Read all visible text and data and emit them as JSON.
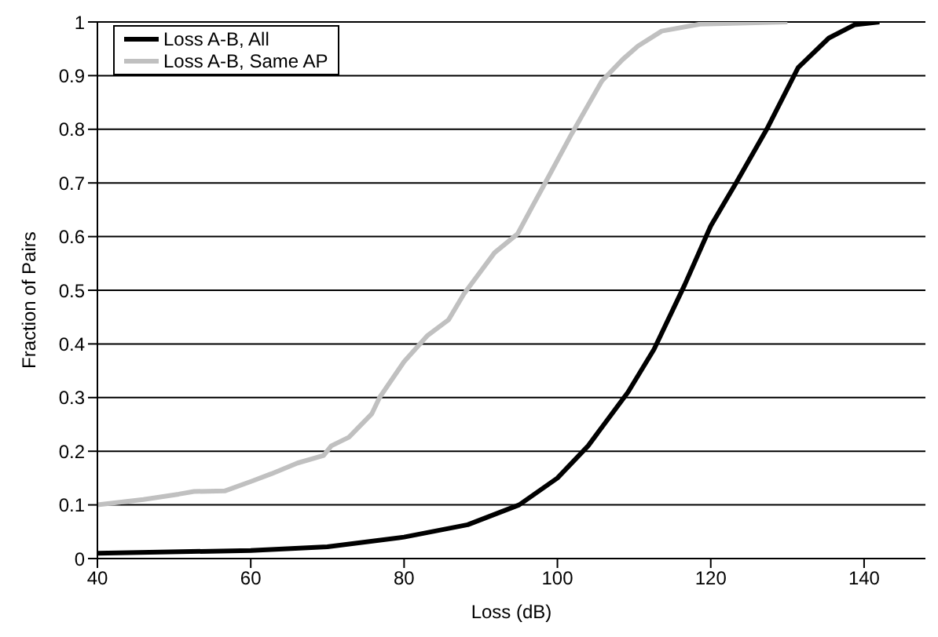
{
  "chart_data": {
    "type": "line",
    "xlabel": "Loss (dB)",
    "ylabel": "Fraction of Pairs",
    "xlim": [
      40,
      148
    ],
    "xticks": [
      40,
      60,
      80,
      100,
      120,
      140
    ],
    "ylim": [
      0,
      1
    ],
    "yticks": [
      0,
      0.1,
      0.2,
      0.3,
      0.4,
      0.5,
      0.6,
      0.7,
      0.8,
      0.9,
      1
    ],
    "grid": "y",
    "legend": "top left",
    "marker": "none",
    "line_style": "solid",
    "series": [
      {
        "name": "Loss A-B, All",
        "color": "#000000",
        "x": [
          40,
          60,
          70,
          80,
          88.3,
          95,
          100,
          104,
          109.2,
          112.6,
          116.6,
          120,
          123.3,
          127.3,
          131.4,
          135.4,
          138.8,
          142
        ],
        "values": [
          0.01,
          0.015,
          0.022,
          0.04,
          0.063,
          0.1,
          0.15,
          0.21,
          0.31,
          0.39,
          0.51,
          0.62,
          0.7,
          0.8,
          0.915,
          0.97,
          0.995,
          1
        ]
      },
      {
        "name": "Loss A-B, Same AP",
        "color": "#c0c0c0",
        "x": [
          40,
          46,
          50.6,
          52.6,
          56.6,
          60.1,
          62.7,
          66.1,
          69.5,
          70.5,
          72.8,
          75.8,
          76.8,
          80,
          83,
          85.8,
          87.8,
          91.8,
          94.8,
          96.8,
          98.4,
          101.8,
          105.8,
          108.5,
          110.5,
          113.6,
          118.6,
          130
        ],
        "values": [
          0.1,
          0.11,
          0.12,
          0.125,
          0.126,
          0.144,
          0.158,
          0.178,
          0.192,
          0.21,
          0.226,
          0.27,
          0.3,
          0.367,
          0.415,
          0.445,
          0.493,
          0.57,
          0.605,
          0.658,
          0.7,
          0.79,
          0.89,
          0.93,
          0.955,
          0.983,
          0.996,
          1
        ]
      }
    ]
  }
}
